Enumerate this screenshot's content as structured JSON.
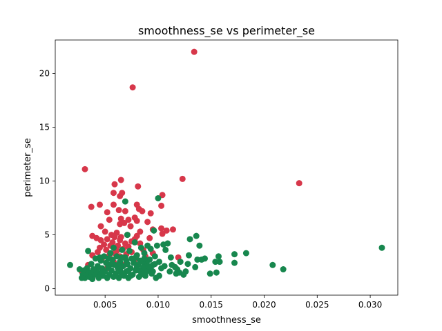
{
  "chart_data": {
    "type": "scatter",
    "title": "smoothness_se vs perimeter_se",
    "xlabel": "smoothness_se",
    "ylabel": "perimeter_se",
    "xlim": [
      0.0003,
      0.0326
    ],
    "ylim": [
      -0.6,
      23.1
    ],
    "x_ticks": [
      0.005,
      0.01,
      0.015,
      0.02,
      0.025,
      0.03
    ],
    "x_tick_labels": [
      "0.005",
      "0.010",
      "0.015",
      "0.020",
      "0.025",
      "0.030"
    ],
    "y_ticks": [
      0,
      5,
      10,
      15,
      20
    ],
    "y_tick_labels": [
      "0",
      "5",
      "10",
      "15",
      "20"
    ],
    "grid": false,
    "series": [
      {
        "color": "#d7374a",
        "points": [
          [
            0.0134,
            22.0
          ],
          [
            0.0076,
            18.7
          ],
          [
            0.0031,
            11.1
          ],
          [
            0.0123,
            10.2
          ],
          [
            0.0065,
            10.1
          ],
          [
            0.0233,
            9.8
          ],
          [
            0.0059,
            9.7
          ],
          [
            0.0081,
            9.5
          ],
          [
            0.0066,
            8.9
          ],
          [
            0.0058,
            8.9
          ],
          [
            0.0104,
            8.7
          ],
          [
            0.0064,
            8.6
          ],
          [
            0.008,
            7.8
          ],
          [
            0.0103,
            7.7
          ],
          [
            0.0058,
            7.8
          ],
          [
            0.0045,
            7.8
          ],
          [
            0.0037,
            7.6
          ],
          [
            0.0063,
            7.3
          ],
          [
            0.0069,
            7.2
          ],
          [
            0.0082,
            7.4
          ],
          [
            0.0052,
            7.1
          ],
          [
            0.0085,
            7.2
          ],
          [
            0.0093,
            7.0
          ],
          [
            0.0078,
            6.6
          ],
          [
            0.0065,
            6.5
          ],
          [
            0.0072,
            6.4
          ],
          [
            0.0054,
            6.4
          ],
          [
            0.009,
            6.2
          ],
          [
            0.008,
            6.3
          ],
          [
            0.0064,
            6.0
          ],
          [
            0.0068,
            6.1
          ],
          [
            0.0046,
            5.8
          ],
          [
            0.0074,
            5.8
          ],
          [
            0.0103,
            5.6
          ],
          [
            0.0095,
            5.5
          ],
          [
            0.0114,
            5.5
          ],
          [
            0.0108,
            5.4
          ],
          [
            0.0083,
            5.3
          ],
          [
            0.0061,
            5.2
          ],
          [
            0.005,
            5.3
          ],
          [
            0.0056,
            5.0
          ],
          [
            0.0071,
            5.0
          ],
          [
            0.008,
            4.9
          ],
          [
            0.0104,
            5.1
          ],
          [
            0.0059,
            4.8
          ],
          [
            0.0038,
            4.9
          ],
          [
            0.0042,
            4.7
          ],
          [
            0.0065,
            4.8
          ],
          [
            0.0078,
            4.6
          ],
          [
            0.0092,
            4.7
          ],
          [
            0.0052,
            4.6
          ],
          [
            0.0046,
            4.5
          ],
          [
            0.0064,
            4.5
          ],
          [
            0.0075,
            4.4
          ],
          [
            0.0057,
            4.3
          ],
          [
            0.0083,
            4.2
          ],
          [
            0.0069,
            4.2
          ],
          [
            0.0049,
            4.1
          ],
          [
            0.0062,
            4.0
          ],
          [
            0.0055,
            4.0
          ],
          [
            0.0072,
            3.9
          ],
          [
            0.0045,
            3.8
          ],
          [
            0.0067,
            3.7
          ],
          [
            0.0086,
            3.6
          ],
          [
            0.0051,
            3.6
          ],
          [
            0.0061,
            3.5
          ],
          [
            0.0043,
            3.4
          ],
          [
            0.0075,
            3.4
          ],
          [
            0.0059,
            3.3
          ],
          [
            0.0095,
            3.3
          ],
          [
            0.007,
            3.2
          ],
          [
            0.0038,
            3.1
          ],
          [
            0.0054,
            3.1
          ],
          [
            0.0064,
            3.0
          ],
          [
            0.0088,
            3.0
          ],
          [
            0.0119,
            2.9
          ],
          [
            0.0047,
            2.8
          ],
          [
            0.0078,
            2.7
          ],
          [
            0.0058,
            2.5
          ],
          [
            0.0034,
            2.2
          ],
          [
            0.0068,
            2.2
          ],
          [
            0.0028,
            1.6
          ],
          [
            0.004,
            1.3
          ],
          [
            0.0052,
            1.9
          ]
        ]
      },
      {
        "color": "#17874e",
        "points": [
          [
            0.0311,
            3.8
          ],
          [
            0.0218,
            1.8
          ],
          [
            0.0208,
            2.2
          ],
          [
            0.0183,
            3.3
          ],
          [
            0.0172,
            3.2
          ],
          [
            0.0172,
            2.4
          ],
          [
            0.0158,
            2.5
          ],
          [
            0.0157,
            3.0
          ],
          [
            0.0154,
            2.5
          ],
          [
            0.0155,
            1.5
          ],
          [
            0.0149,
            1.4
          ],
          [
            0.0144,
            2.8
          ],
          [
            0.0141,
            2.7
          ],
          [
            0.0139,
            4.0
          ],
          [
            0.0136,
            4.9
          ],
          [
            0.0137,
            2.7
          ],
          [
            0.0135,
            2.0
          ],
          [
            0.013,
            4.6
          ],
          [
            0.0129,
            3.1
          ],
          [
            0.0128,
            2.3
          ],
          [
            0.0126,
            1.6
          ],
          [
            0.0124,
            1.3
          ],
          [
            0.0121,
            2.5
          ],
          [
            0.012,
            1.5
          ],
          [
            0.0118,
            1.8
          ],
          [
            0.0116,
            2.0
          ],
          [
            0.0113,
            2.2
          ],
          [
            0.0111,
            1.6
          ],
          [
            0.0109,
            4.2
          ],
          [
            0.0107,
            3.6
          ],
          [
            0.0105,
            4.1
          ],
          [
            0.0103,
            1.9
          ],
          [
            0.0101,
            2.5
          ],
          [
            0.01,
            8.4
          ],
          [
            0.0099,
            4.0
          ],
          [
            0.0098,
            1.0
          ],
          [
            0.0097,
            3.0
          ],
          [
            0.0096,
            5.4
          ],
          [
            0.0095,
            2.2
          ],
          [
            0.0094,
            1.4
          ],
          [
            0.0093,
            3.7
          ],
          [
            0.0092,
            2.7
          ],
          [
            0.0091,
            1.8
          ],
          [
            0.009,
            4.0
          ],
          [
            0.0089,
            2.4
          ],
          [
            0.0088,
            1.2
          ],
          [
            0.0087,
            3.3
          ],
          [
            0.0086,
            2.0
          ],
          [
            0.0085,
            1.5
          ],
          [
            0.0084,
            3.8
          ],
          [
            0.0083,
            2.6
          ],
          [
            0.0082,
            1.1
          ],
          [
            0.0081,
            2.2
          ],
          [
            0.008,
            3.1
          ],
          [
            0.0079,
            1.7
          ],
          [
            0.0078,
            4.3
          ],
          [
            0.0077,
            2.4
          ],
          [
            0.0076,
            1.3
          ],
          [
            0.0075,
            2.8
          ],
          [
            0.0074,
            1.9
          ],
          [
            0.0073,
            3.5
          ],
          [
            0.0072,
            1.0
          ],
          [
            0.0071,
            2.3
          ],
          [
            0.0071,
            5.0
          ],
          [
            0.007,
            1.6
          ],
          [
            0.0069,
            8.1
          ],
          [
            0.0069,
            2.9
          ],
          [
            0.0068,
            1.2
          ],
          [
            0.0067,
            2.1
          ],
          [
            0.0066,
            3.6
          ],
          [
            0.0065,
            1.5
          ],
          [
            0.0064,
            2.5
          ],
          [
            0.0063,
            1.0
          ],
          [
            0.0062,
            1.9
          ],
          [
            0.0061,
            3.0
          ],
          [
            0.006,
            1.4
          ],
          [
            0.0059,
            2.2
          ],
          [
            0.0058,
            1.1
          ],
          [
            0.0057,
            2.7
          ],
          [
            0.0056,
            1.7
          ],
          [
            0.0055,
            3.3
          ],
          [
            0.0054,
            1.3
          ],
          [
            0.0053,
            2.0
          ],
          [
            0.0052,
            1.0
          ],
          [
            0.0051,
            2.4
          ],
          [
            0.005,
            1.6
          ],
          [
            0.0049,
            3.0
          ],
          [
            0.0048,
            1.2
          ],
          [
            0.0047,
            1.9
          ],
          [
            0.0046,
            2.6
          ],
          [
            0.0045,
            1.4
          ],
          [
            0.0044,
            1.0
          ],
          [
            0.0043,
            2.1
          ],
          [
            0.0042,
            1.7
          ],
          [
            0.0041,
            2.8
          ],
          [
            0.004,
            1.3
          ],
          [
            0.0039,
            1.8
          ],
          [
            0.0038,
            0.9
          ],
          [
            0.0037,
            2.3
          ],
          [
            0.0036,
            1.5
          ],
          [
            0.0035,
            1.1
          ],
          [
            0.0034,
            3.5
          ],
          [
            0.0033,
            1.9
          ],
          [
            0.0032,
            1.4
          ],
          [
            0.0031,
            1.0
          ],
          [
            0.003,
            1.7
          ],
          [
            0.0029,
            1.3
          ],
          [
            0.0028,
            1.0
          ],
          [
            0.0026,
            1.8
          ],
          [
            0.0017,
            2.2
          ],
          [
            0.0045,
            2.9
          ],
          [
            0.0058,
            3.8
          ],
          [
            0.0062,
            2.2
          ],
          [
            0.0067,
            1.4
          ],
          [
            0.0079,
            2.9
          ],
          [
            0.0082,
            1.7
          ],
          [
            0.0085,
            2.5
          ],
          [
            0.0089,
            1.6
          ],
          [
            0.0093,
            1.9
          ],
          [
            0.0097,
            2.3
          ],
          [
            0.0101,
            1.2
          ],
          [
            0.0106,
            2.1
          ],
          [
            0.0112,
            2.9
          ],
          [
            0.0117,
            1.4
          ],
          [
            0.0053,
            2.8
          ],
          [
            0.0048,
            1.5
          ],
          [
            0.0056,
            2.3
          ],
          [
            0.0064,
            1.8
          ],
          [
            0.007,
            2.6
          ],
          [
            0.0074,
            1.2
          ],
          [
            0.0087,
            2.8
          ],
          [
            0.0091,
            2.1
          ],
          [
            0.006,
            1.2
          ],
          [
            0.0066,
            2.9
          ],
          [
            0.0072,
            1.7
          ],
          [
            0.008,
            2.0
          ],
          [
            0.0084,
            1.3
          ],
          [
            0.0095,
            1.6
          ]
        ]
      }
    ]
  }
}
